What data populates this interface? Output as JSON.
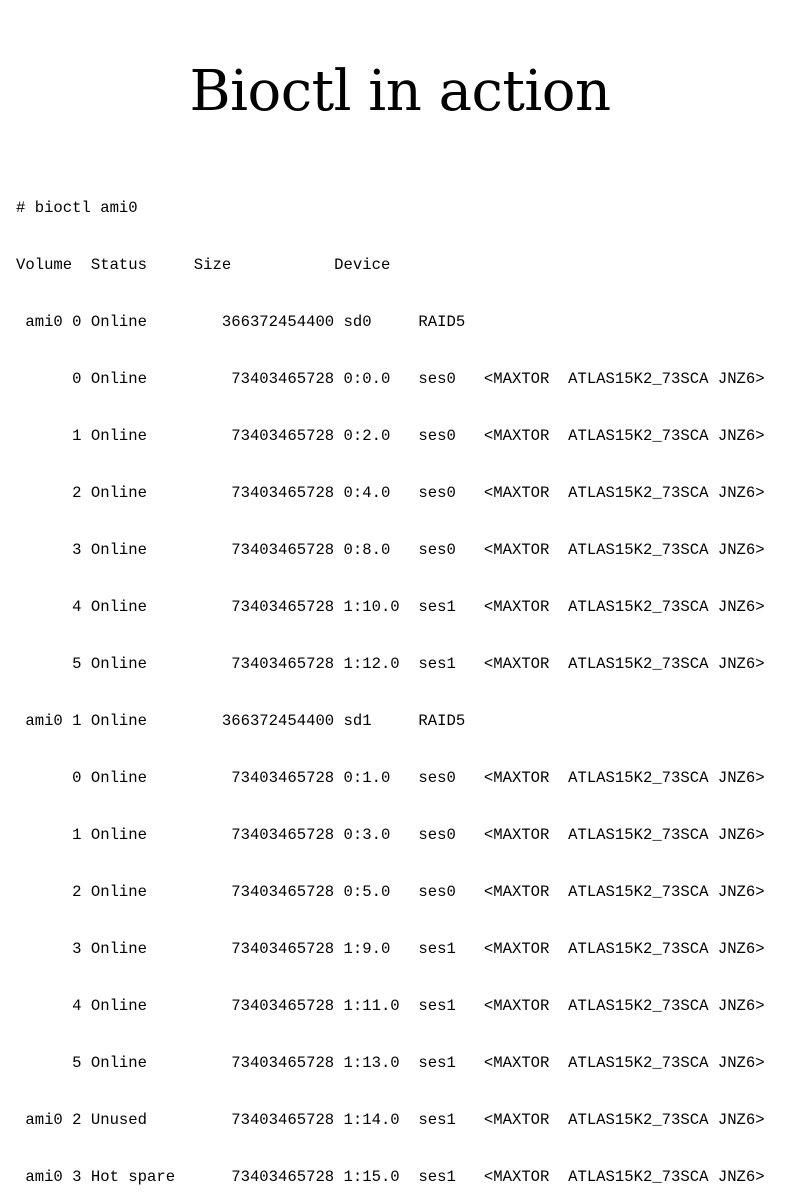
{
  "slide": {
    "title": "Bioctl in action"
  },
  "terminal": {
    "command": "# bioctl ami0",
    "header": "Volume  Status     Size           Device",
    "rows": [
      " ami0 0 Online        366372454400 sd0     RAID5",
      "      0 Online         73403465728 0:0.0   ses0   <MAXTOR  ATLAS15K2_73SCA JNZ6>",
      "      1 Online         73403465728 0:2.0   ses0   <MAXTOR  ATLAS15K2_73SCA JNZ6>",
      "      2 Online         73403465728 0:4.0   ses0   <MAXTOR  ATLAS15K2_73SCA JNZ6>",
      "      3 Online         73403465728 0:8.0   ses0   <MAXTOR  ATLAS15K2_73SCA JNZ6>",
      "      4 Online         73403465728 1:10.0  ses1   <MAXTOR  ATLAS15K2_73SCA JNZ6>",
      "      5 Online         73403465728 1:12.0  ses1   <MAXTOR  ATLAS15K2_73SCA JNZ6>",
      " ami0 1 Online        366372454400 sd1     RAID5",
      "      0 Online         73403465728 0:1.0   ses0   <MAXTOR  ATLAS15K2_73SCA JNZ6>",
      "      1 Online         73403465728 0:3.0   ses0   <MAXTOR  ATLAS15K2_73SCA JNZ6>",
      "      2 Online         73403465728 0:5.0   ses0   <MAXTOR  ATLAS15K2_73SCA JNZ6>",
      "      3 Online         73403465728 1:9.0   ses1   <MAXTOR  ATLAS15K2_73SCA JNZ6>",
      "      4 Online         73403465728 1:11.0  ses1   <MAXTOR  ATLAS15K2_73SCA JNZ6>",
      "      5 Online         73403465728 1:13.0  ses1   <MAXTOR  ATLAS15K2_73SCA JNZ6>",
      " ami0 2 Unused         73403465728 1:14.0  ses1   <MAXTOR  ATLAS15K2_73SCA JNZ6>",
      " ami0 3 Hot spare      73403465728 1:15.0  ses1   <MAXTOR  ATLAS15K2_73SCA JNZ6>"
    ]
  }
}
